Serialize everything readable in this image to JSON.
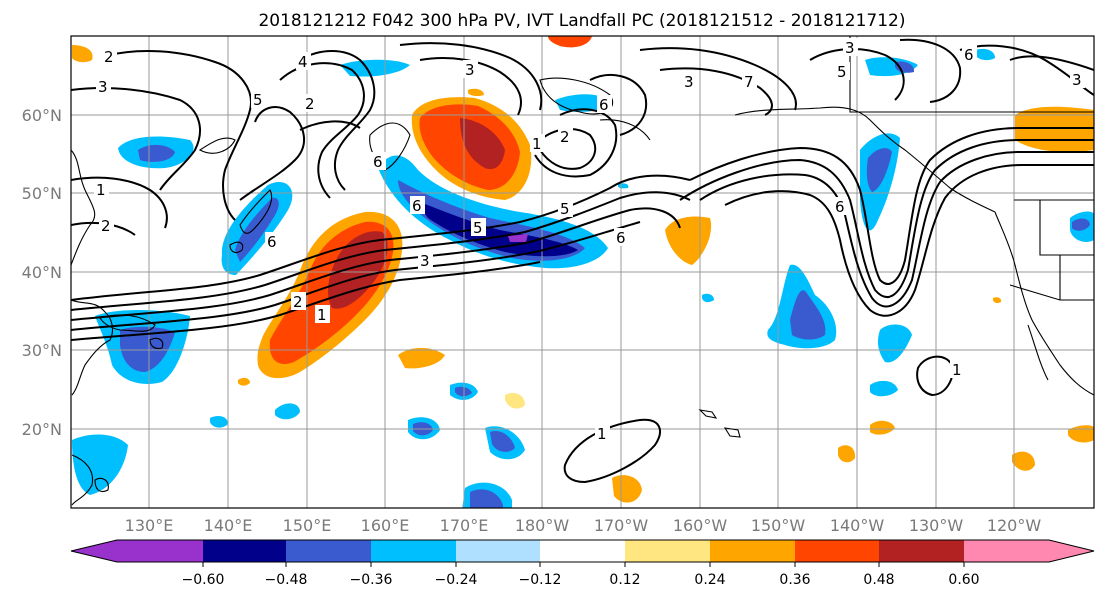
{
  "title": "2018121212 F042 300 hPa PV, IVT Landfall PC (2018121512 - 2018121712)",
  "latitude_labels": [
    "60°N",
    "50°N",
    "40°N",
    "30°N",
    "20°N"
  ],
  "longitude_labels": [
    "130°E",
    "140°E",
    "150°E",
    "160°E",
    "170°E",
    "180°W",
    "170°W",
    "160°W",
    "150°W",
    "140°W",
    "130°W",
    "120°W"
  ],
  "colorbar": {
    "tick_labels": [
      "−0.60",
      "−0.48",
      "−0.36",
      "−0.24",
      "−0.12",
      "0.12",
      "0.24",
      "0.36",
      "0.48",
      "0.60"
    ],
    "colors": [
      "#9932CC",
      "#00008B",
      "#3A5BD0",
      "#00BFFF",
      "#B0E0FF",
      "#FFFFFF",
      "#FFE680",
      "#FFA500",
      "#FF4500",
      "#B22222",
      "#FF88B0"
    ]
  },
  "contour_labels": {
    "c2a": "2",
    "c3a": "3",
    "c1a": "1",
    "c2b": "2",
    "c4a": "4",
    "c5a": "5",
    "c2c": "2",
    "c3b": "3",
    "c3c": "3",
    "c1b": "1",
    "c2d": "2",
    "c6a": "6",
    "c6b": "6",
    "c3d": "3",
    "c5b": "5",
    "c6c": "6",
    "c6d": "6",
    "c7a": "7",
    "c6e": "6",
    "c3e": "3",
    "c5c": "5",
    "c6f": "6",
    "c5d": "5",
    "c2e": "2",
    "c1c": "1",
    "c1d": "1",
    "c1e": "1",
    "c6g": "6",
    "c3f": "3"
  },
  "chart_data": {
    "type": "heatmap",
    "title": "2018121212 F042 300 hPa PV, IVT Landfall PC (2018121512 - 2018121712)",
    "levels": [
      -0.6,
      -0.48,
      -0.36,
      -0.24,
      -0.12,
      0.12,
      0.24,
      0.36,
      0.48,
      0.6
    ],
    "lat_range": [
      10,
      70
    ],
    "lon_range": [
      120,
      250
    ],
    "grid": true,
    "contour_values": [
      1,
      2,
      3,
      4,
      5,
      6,
      7
    ],
    "colorbar_position": "bottom"
  }
}
